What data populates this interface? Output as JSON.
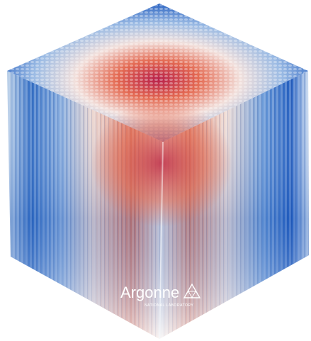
{
  "logo": {
    "name": "Argonne",
    "subtitle": "NATIONAL LABORATORY"
  }
}
